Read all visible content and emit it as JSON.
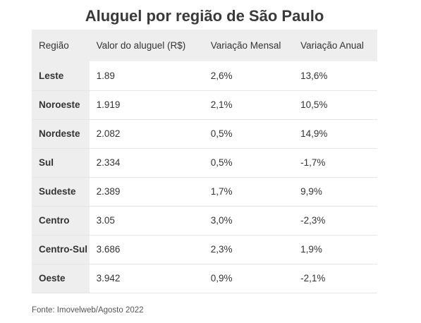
{
  "title": "Aluguel por região de São Paulo",
  "source": "Fonte: Imovelweb/Agosto 2022",
  "table": {
    "headers": [
      "Região",
      "Valor do aluguel (R$)",
      "Variação Mensal",
      "Variação Anual"
    ],
    "rows": [
      [
        "Leste",
        "1.89",
        "2,6%",
        "13,6%"
      ],
      [
        "Noroeste",
        "1.919",
        "2,1%",
        "10,5%"
      ],
      [
        "Nordeste",
        "2.082",
        "0,5%",
        "14,9%"
      ],
      [
        "Sul",
        "2.334",
        "0,5%",
        "-1,7%"
      ],
      [
        "Sudeste",
        "2.389",
        "1,7%",
        "9,9%"
      ],
      [
        "Centro",
        "3.05",
        "3,0%",
        "-2,3%"
      ],
      [
        "Centro-Sul",
        "3.686",
        "2,3%",
        "1,9%"
      ],
      [
        "Oeste",
        "3.942",
        "0,9%",
        "-2,1%"
      ]
    ]
  },
  "chart_data": {
    "type": "table",
    "title": "Aluguel por região de São Paulo",
    "columns": [
      "Região",
      "Valor do aluguel (R$)",
      "Variação Mensal",
      "Variação Anual"
    ],
    "rows": [
      [
        "Leste",
        "1.89",
        "2,6%",
        "13,6%"
      ],
      [
        "Noroeste",
        "1.919",
        "2,1%",
        "10,5%"
      ],
      [
        "Nordeste",
        "2.082",
        "0,5%",
        "14,9%"
      ],
      [
        "Sul",
        "2.334",
        "0,5%",
        "-1,7%"
      ],
      [
        "Sudeste",
        "2.389",
        "1,7%",
        "9,9%"
      ],
      [
        "Centro",
        "3.05",
        "3,0%",
        "-2,3%"
      ],
      [
        "Centro-Sul",
        "3.686",
        "2,3%",
        "1,9%"
      ],
      [
        "Oeste",
        "3.942",
        "0,9%",
        "-2,1%"
      ]
    ]
  }
}
